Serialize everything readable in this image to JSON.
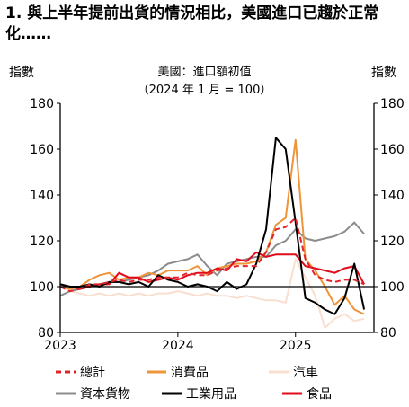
{
  "header": {
    "title": "1. 與上半年提前出貨的情況相比，美國進口已趨於正常化……",
    "y_unit_left": "指數",
    "y_unit_right": "指數"
  },
  "colors": {
    "total": "#e2252b",
    "consumer": "#ef9438",
    "auto": "#f8dfcf",
    "capital": "#8c8c8c",
    "industrial": "#000000",
    "food": "#e00b1b"
  },
  "chart_data": {
    "type": "line",
    "title_lines": [
      "美國：進口額初值",
      "（2024 年 1 月 = 100）"
    ],
    "ylim": [
      80,
      180
    ],
    "yticks": [
      80,
      100,
      120,
      140,
      160,
      180
    ],
    "x_range": [
      "2023-01",
      "2025-09"
    ],
    "x_tick_labels": [
      {
        "label": "2023",
        "at": "2023-01"
      },
      {
        "label": "2024",
        "at": "2024-01"
      },
      {
        "label": "2025",
        "at": "2025-01"
      }
    ],
    "x": [
      "2023-01",
      "2023-02",
      "2023-03",
      "2023-04",
      "2023-05",
      "2023-06",
      "2023-07",
      "2023-08",
      "2023-09",
      "2023-10",
      "2023-11",
      "2023-12",
      "2024-01",
      "2024-02",
      "2024-03",
      "2024-04",
      "2024-05",
      "2024-06",
      "2024-07",
      "2024-08",
      "2024-09",
      "2024-10",
      "2024-11",
      "2024-12",
      "2025-01",
      "2025-02",
      "2025-03",
      "2025-04",
      "2025-05",
      "2025-06",
      "2025-07",
      "2025-08"
    ],
    "series": [
      {
        "name": "總計",
        "key": "total",
        "dash": true,
        "values": [
          100,
          98,
          99,
          101,
          101,
          102,
          103,
          102,
          103,
          103,
          104,
          104,
          104,
          106,
          105,
          105,
          107,
          108,
          109,
          109,
          109,
          115,
          125,
          126,
          130,
          112,
          105,
          103,
          102,
          103,
          103,
          101
        ]
      },
      {
        "name": "消費品",
        "key": "consumer",
        "dash": false,
        "values": [
          100,
          99,
          100,
          103,
          105,
          106,
          103,
          104,
          104,
          106,
          105,
          107,
          107,
          107,
          109,
          105,
          108,
          109,
          110,
          110,
          111,
          115,
          127,
          130,
          164,
          112,
          107,
          100,
          92,
          96,
          90,
          88
        ]
      },
      {
        "name": "汽車",
        "key": "auto",
        "dash": false,
        "values": [
          100,
          98,
          97,
          96,
          97,
          96,
          97,
          96,
          97,
          96,
          97,
          97,
          98,
          97,
          96,
          97,
          96,
          96,
          95,
          96,
          95,
          94,
          94,
          93,
          112,
          104,
          96,
          82,
          86,
          88,
          85,
          86
        ]
      },
      {
        "name": "資本貨物",
        "key": "capital",
        "dash": false,
        "values": [
          96,
          98,
          99,
          100,
          101,
          102,
          102,
          103,
          104,
          105,
          107,
          110,
          111,
          112,
          114,
          109,
          105,
          110,
          111,
          112,
          113,
          113,
          118,
          120,
          125,
          121,
          120,
          121,
          122,
          124,
          128,
          123
        ]
      },
      {
        "name": "工業用品",
        "key": "industrial",
        "dash": false,
        "values": [
          101,
          100,
          100,
          101,
          100,
          102,
          102,
          101,
          102,
          100,
          105,
          103,
          102,
          100,
          101,
          100,
          98,
          102,
          99,
          101,
          110,
          125,
          165,
          160,
          128,
          95,
          93,
          90,
          88,
          95,
          110,
          90
        ]
      },
      {
        "name": "食品",
        "key": "food",
        "dash": false,
        "values": [
          101,
          100,
          99,
          100,
          101,
          101,
          106,
          104,
          104,
          102,
          103,
          104,
          103,
          105,
          106,
          106,
          108,
          107,
          112,
          111,
          115,
          113,
          114,
          114,
          114,
          109,
          108,
          107,
          106,
          108,
          109,
          101
        ]
      }
    ],
    "legend_rows": [
      [
        "total",
        "consumer",
        "auto"
      ],
      [
        "capital",
        "industrial",
        "food"
      ]
    ]
  }
}
